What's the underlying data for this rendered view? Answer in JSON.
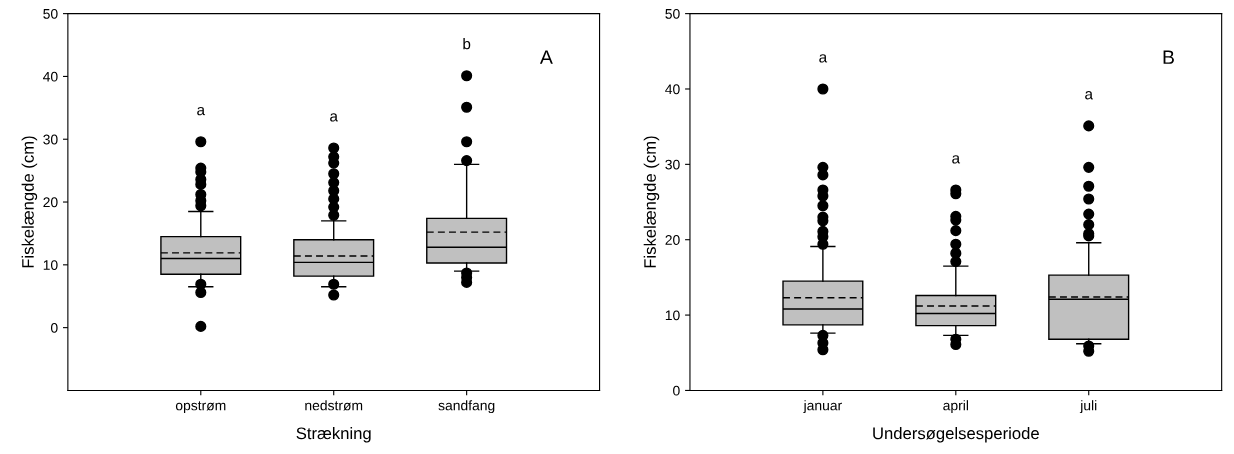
{
  "chart_data": [
    {
      "type": "box",
      "xlabel": "Strækning",
      "ylabel": "Fiskelængde (cm)",
      "categories": [
        "opstrøm",
        "nedstrøm",
        "sandfang"
      ],
      "ylim": [
        -10,
        50
      ],
      "yticks": [
        0,
        10,
        20,
        30,
        40,
        50
      ],
      "grid": false,
      "color": "#c0c0c0",
      "boxes": [
        {
          "low": 6.5,
          "q1": 8.5,
          "median": 11.0,
          "q3": 14.5,
          "high": 18.5,
          "mean": 11.9,
          "outliers": [
            29.6,
            25.4,
            24.8,
            23.6,
            22.8,
            21.2,
            20.2,
            19.4,
            6.9,
            5.6,
            0.2
          ]
        },
        {
          "low": 6.5,
          "q1": 8.2,
          "median": 10.4,
          "q3": 14.0,
          "high": 17.0,
          "mean": 11.4,
          "outliers": [
            28.6,
            27.2,
            26.2,
            24.5,
            23.1,
            21.8,
            20.5,
            19.2,
            17.9,
            6.9,
            5.2
          ]
        },
        {
          "low": 9.0,
          "q1": 10.3,
          "median": 12.8,
          "q3": 17.4,
          "high": 26.0,
          "mean": 15.2,
          "outliers": [
            40.1,
            35.1,
            29.6,
            26.6,
            8.7,
            8.0,
            7.2
          ]
        }
      ],
      "annotations": [
        "a",
        "a",
        "b",
        "A"
      ]
    },
    {
      "type": "box",
      "xlabel": "Undersøgelsesperiode",
      "ylabel": "Fiskelængde (cm)",
      "categories": [
        "januar",
        "april",
        "juli"
      ],
      "ylim": [
        0,
        50
      ],
      "yticks": [
        0,
        10,
        20,
        30,
        40,
        50
      ],
      "grid": false,
      "color": "#c0c0c0",
      "boxes": [
        {
          "low": 7.6,
          "q1": 8.7,
          "median": 10.8,
          "q3": 14.5,
          "high": 19.1,
          "mean": 12.3,
          "outliers": [
            40.0,
            29.6,
            28.6,
            26.6,
            25.8,
            24.5,
            23.0,
            22.5,
            21.1,
            20.4,
            19.4,
            7.3,
            6.3,
            5.4
          ]
        },
        {
          "low": 7.3,
          "q1": 8.6,
          "median": 10.2,
          "q3": 12.6,
          "high": 16.5,
          "mean": 11.2,
          "outliers": [
            26.6,
            26.1,
            23.1,
            22.6,
            21.2,
            19.4,
            18.2,
            17.1,
            6.8,
            6.1
          ]
        },
        {
          "low": 6.2,
          "q1": 6.8,
          "median": 12.1,
          "q3": 15.3,
          "high": 19.6,
          "mean": 12.4,
          "outliers": [
            35.1,
            29.6,
            27.1,
            25.4,
            23.4,
            22.0,
            20.8,
            20.5,
            5.9,
            5.2
          ]
        }
      ],
      "annotations": [
        "a",
        "a",
        "a",
        "B"
      ]
    }
  ]
}
